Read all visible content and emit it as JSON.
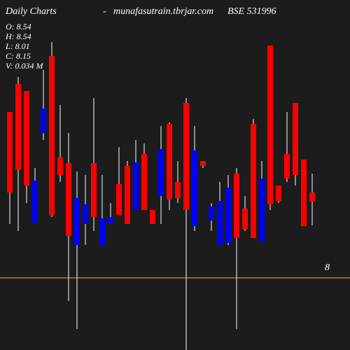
{
  "chart_data": {
    "type": "candlestick",
    "title": "Daily Charts",
    "separator": "-",
    "site": "munafasutrain.tbrjar.com",
    "symbol": "BSE 531996",
    "info": [
      "O: 8.54",
      "H: 8.54",
      "L: 8.01",
      "C: 8.15",
      "V: 0.034 M"
    ],
    "right_label": "8",
    "up_color": "#0000ff",
    "down_color": "#ff0000",
    "ylim": [
      0,
      500
    ],
    "open": [
      340,
      380,
      370,
      182,
      310,
      420,
      275,
      267,
      150,
      180,
      267,
      150,
      180,
      237,
      263,
      200,
      280,
      200,
      220,
      323,
      240,
      353,
      177,
      270,
      185,
      150,
      153,
      252,
      202,
      323,
      155,
      435,
      235,
      280,
      353,
      272,
      225
    ],
    "high": [
      340,
      390,
      370,
      260,
      400,
      440,
      350,
      310,
      255,
      250,
      360,
      250,
      210,
      290,
      270,
      300,
      295,
      200,
      320,
      325,
      270,
      360,
      320,
      270,
      210,
      240,
      250,
      260,
      220,
      330,
      270,
      435,
      235,
      340,
      353,
      272,
      252
    ],
    "low": [
      180,
      170,
      210,
      182,
      300,
      190,
      240,
      70,
      30,
      150,
      170,
      150,
      180,
      193,
      180,
      200,
      200,
      180,
      180,
      200,
      210,
      0,
      170,
      260,
      170,
      150,
      150,
      30,
      170,
      160,
      155,
      200,
      210,
      240,
      235,
      177,
      178
    ],
    "close": [
      225,
      257,
      235,
      242,
      345,
      192,
      250,
      163,
      217,
      208,
      190,
      188,
      190,
      193,
      180,
      268,
      200,
      180,
      287,
      215,
      217,
      200,
      285,
      263,
      205,
      213,
      232,
      160,
      173,
      160,
      245,
      208,
      213,
      245,
      250,
      177,
      212
    ]
  }
}
